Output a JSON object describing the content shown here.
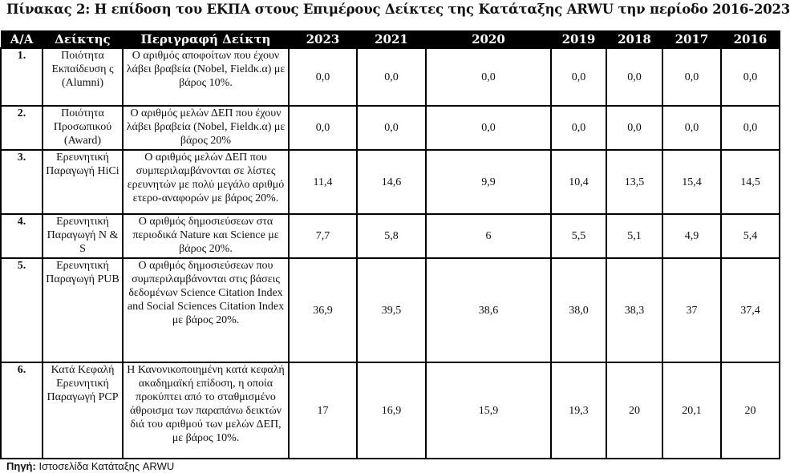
{
  "title": "Πίνακας 2: Η επίδοση του ΕΚΠΑ στους Επιμέρους Δείκτες της Κατάταξης ARWU την περίοδο 2016-2023",
  "columns": [
    "Α/Α",
    "Δείκτης",
    "Περιγραφή Δείκτη",
    "2023",
    "2021",
    "2020",
    "2019",
    "2018",
    "2017",
    "2016"
  ],
  "rows": [
    {
      "aa": "1.",
      "indicator": "Ποιότητα Εκπαίδευση ς (Alumni)",
      "description": "Ο αριθμός αποφοίτων που έχουν λάβει βραβεία (Nobel, Fieldκ.α) με βάρος 10%.",
      "values": [
        "0,0",
        "0,0",
        "0,0",
        "0,0",
        "0,0",
        "0,0",
        "0,0"
      ]
    },
    {
      "aa": "2.",
      "indicator": "Ποιότητα Προσωπικού (Award)",
      "description": "Ο αριθμός μελών ΔΕΠ που έχουν λάβει βραβεία (Nobel, Fieldκ.α) με βάρος 20%",
      "values": [
        "0,0",
        "0,0",
        "0,0",
        "0,0",
        "0,0",
        "0,0",
        "0,0"
      ]
    },
    {
      "aa": "3.",
      "indicator": "Ερευνητική Παραγωγή HiCi",
      "description": "Ο αριθμός μελών ΔΕΠ που συμπεριλαμβάνονται σε λίστες ερευνητών με πολύ μεγάλο αριθμό ετερο-αναφορών με βάρος 20%.",
      "values": [
        "11,4",
        "14,6",
        "9,9",
        "10,4",
        "13,5",
        "15,4",
        "14,5"
      ]
    },
    {
      "aa": "4.",
      "indicator": "Ερευνητική Παραγωγή N & S",
      "description": "Ο αριθμός δημοσιεύσεων στα περιοδικά Nature και Science με βάρος 20%.",
      "values": [
        "7,7",
        "5,8",
        "6",
        "5,5",
        "5,1",
        "4,9",
        "5,4"
      ]
    },
    {
      "aa": "5.",
      "indicator": "Ερευνητική Παραγωγή PUB",
      "description": "Ο αριθμός δημοσιεύσεων που συμπεριλαμβάνονται στις βάσεις δεδομένων Science Citation Index and Social Sciences Citation Index με βάρος 20%.",
      "values": [
        "36,9",
        "39,5",
        "38,6",
        "38,0",
        "38,3",
        "37",
        "37,4"
      ]
    },
    {
      "aa": "6.",
      "indicator": "Κατά Κεφαλή Ερευνητική Παραγωγή PCP",
      "description": "Η Κανονικοποιημένη κατά κεφαλή ακαδημαϊκή επίδοση, η οποία προκύπτει από το σταθμισμένο άθροισμα των παραπάνω δεικτών διά του αριθμού των μελών ΔΕΠ, με βάρος 10%.",
      "values": [
        "17",
        "16,9",
        "15,9",
        "19,3",
        "20",
        "20,1",
        "20"
      ]
    }
  ],
  "source": {
    "label": "Πηγή:",
    "text": "Ιστοσελίδα Κατάταξης ARWU"
  }
}
